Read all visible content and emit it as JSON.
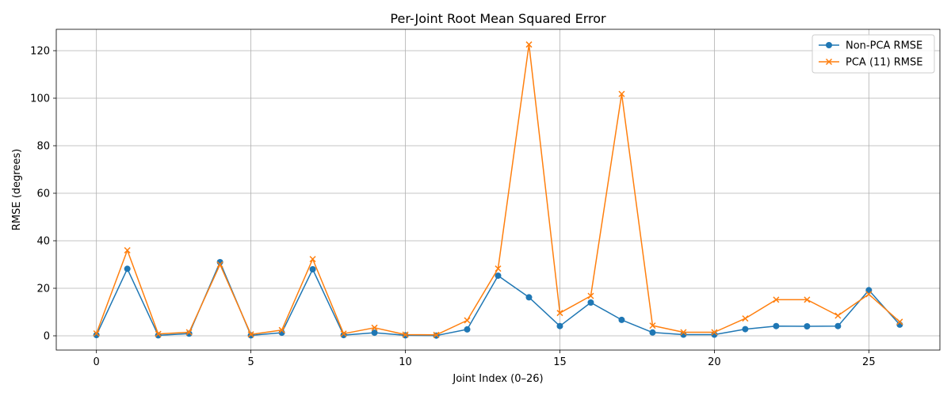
{
  "chart_data": {
    "type": "line",
    "title": "Per-Joint Root Mean Squared Error",
    "xlabel": "Joint Index (0–26)",
    "ylabel": "RMSE (degrees)",
    "x": [
      0,
      1,
      2,
      3,
      4,
      5,
      6,
      7,
      8,
      9,
      10,
      11,
      12,
      13,
      14,
      15,
      16,
      17,
      18,
      19,
      20,
      21,
      22,
      23,
      24,
      25,
      26
    ],
    "xlim": [
      -1.3,
      27.3
    ],
    "ylim": [
      -6,
      129
    ],
    "xticks": [
      0,
      5,
      10,
      15,
      20,
      25
    ],
    "yticks": [
      0,
      20,
      40,
      60,
      80,
      100,
      120
    ],
    "grid": true,
    "legend_position": "top-right",
    "series": [
      {
        "name": "Non-PCA RMSE",
        "marker": "circle",
        "color": "#1f77b4",
        "values": [
          0.3,
          28.2,
          0.2,
          0.9,
          31.0,
          0.2,
          1.3,
          28.0,
          0.3,
          1.3,
          0.2,
          0.1,
          2.7,
          25.3,
          16.2,
          4.1,
          14.0,
          6.7,
          1.4,
          0.5,
          0.5,
          2.8,
          4.1,
          4.0,
          4.1,
          19.2,
          4.7
        ]
      },
      {
        "name": "PCA (11) RMSE",
        "marker": "x",
        "color": "#ff7f0e",
        "values": [
          1.0,
          36.0,
          0.8,
          1.5,
          30.0,
          0.6,
          2.4,
          32.3,
          0.9,
          3.4,
          0.5,
          0.4,
          6.5,
          28.3,
          122.6,
          9.6,
          16.8,
          101.8,
          4.3,
          1.5,
          1.5,
          7.3,
          15.2,
          15.2,
          8.5,
          17.5,
          5.9
        ]
      }
    ]
  }
}
